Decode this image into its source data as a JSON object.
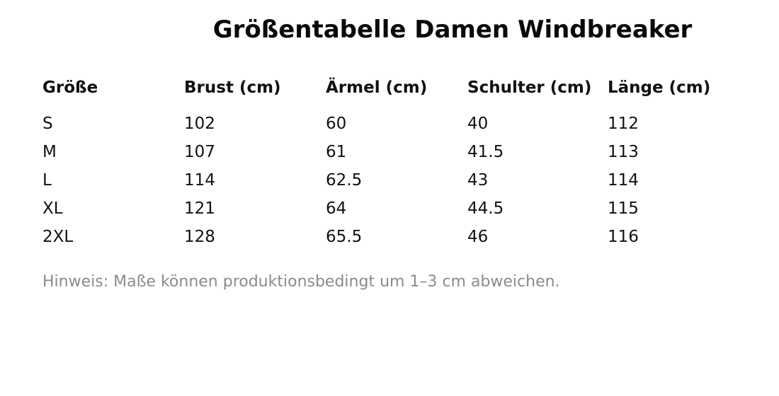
{
  "title": "Größentabelle Damen Windbreaker",
  "table": {
    "headers": [
      "Größe",
      "Brust (cm)",
      "Ärmel (cm)",
      "Schulter (cm)",
      "Länge (cm)"
    ],
    "rows": [
      [
        "S",
        "102",
        "60",
        "40",
        "112"
      ],
      [
        "M",
        "107",
        "61",
        "41.5",
        "113"
      ],
      [
        "L",
        "114",
        "62.5",
        "43",
        "114"
      ],
      [
        "XL",
        "121",
        "64",
        "44.5",
        "115"
      ],
      [
        "2XL",
        "128",
        "65.5",
        "46",
        "116"
      ]
    ]
  },
  "note": "Hinweis: Maße können produktionsbedingt um 1–3 cm abweichen.",
  "colors": {
    "text": "#111111",
    "note_text": "#8b8b8b",
    "background": "#ffffff"
  }
}
